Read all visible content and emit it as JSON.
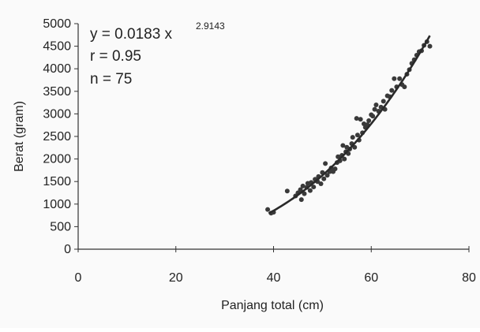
{
  "chart_data": {
    "type": "scatter",
    "xlabel": "Panjang total (cm)",
    "ylabel": "Berat (gram)",
    "xlim": [
      0,
      80
    ],
    "ylim": [
      0,
      5000
    ],
    "x_ticks": [
      "0",
      "20",
      "40",
      "60",
      "80"
    ],
    "y_ticks": [
      "0",
      "500",
      "1000",
      "1500",
      "2000",
      "2500",
      "3000",
      "3500",
      "4000",
      "4500",
      "5000"
    ],
    "grid": false,
    "annotations": {
      "equation": "y = 0.0183 x",
      "exponent": "2.9143",
      "r": "r = 0.95",
      "n": "n = 75"
    },
    "fit": {
      "a": 0.0183,
      "b": 2.9143,
      "x_range": [
        39,
        72
      ]
    },
    "points": [
      [
        38.8,
        880
      ],
      [
        39.5,
        800
      ],
      [
        40.0,
        820
      ],
      [
        42.8,
        1290
      ],
      [
        44.5,
        1180
      ],
      [
        45.0,
        1250
      ],
      [
        45.5,
        1320
      ],
      [
        45.7,
        1100
      ],
      [
        46.0,
        1400
      ],
      [
        46.3,
        1230
      ],
      [
        46.8,
        1370
      ],
      [
        47.0,
        1460
      ],
      [
        47.5,
        1300
      ],
      [
        47.7,
        1480
      ],
      [
        48.2,
        1380
      ],
      [
        48.5,
        1550
      ],
      [
        49.0,
        1500
      ],
      [
        49.2,
        1610
      ],
      [
        49.7,
        1450
      ],
      [
        50.0,
        1700
      ],
      [
        50.3,
        1560
      ],
      [
        50.6,
        1900
      ],
      [
        51.0,
        1640
      ],
      [
        51.5,
        1720
      ],
      [
        51.8,
        1800
      ],
      [
        52.2,
        1720
      ],
      [
        52.6,
        1780
      ],
      [
        53.0,
        1920
      ],
      [
        53.2,
        2050
      ],
      [
        53.6,
        1960
      ],
      [
        54.0,
        2080
      ],
      [
        54.2,
        2300
      ],
      [
        54.5,
        2000
      ],
      [
        54.8,
        2160
      ],
      [
        55.0,
        2260
      ],
      [
        55.3,
        2120
      ],
      [
        55.6,
        2220
      ],
      [
        56.0,
        2340
      ],
      [
        56.2,
        2480
      ],
      [
        56.6,
        2260
      ],
      [
        57.0,
        2900
      ],
      [
        57.2,
        2530
      ],
      [
        57.5,
        2420
      ],
      [
        57.8,
        2880
      ],
      [
        58.2,
        2580
      ],
      [
        58.5,
        2780
      ],
      [
        58.8,
        2700
      ],
      [
        59.2,
        2760
      ],
      [
        59.5,
        2850
      ],
      [
        60.0,
        2980
      ],
      [
        60.3,
        2950
      ],
      [
        60.7,
        3100
      ],
      [
        61.0,
        3200
      ],
      [
        61.5,
        3060
      ],
      [
        62.0,
        3150
      ],
      [
        62.5,
        3280
      ],
      [
        62.8,
        3100
      ],
      [
        63.3,
        3400
      ],
      [
        63.8,
        3380
      ],
      [
        64.2,
        3520
      ],
      [
        64.7,
        3780
      ],
      [
        65.2,
        3600
      ],
      [
        65.8,
        3780
      ],
      [
        66.3,
        3650
      ],
      [
        66.8,
        3600
      ],
      [
        67.3,
        3880
      ],
      [
        67.8,
        3980
      ],
      [
        68.3,
        4120
      ],
      [
        68.8,
        4200
      ],
      [
        69.3,
        4300
      ],
      [
        69.8,
        4380
      ],
      [
        70.3,
        4400
      ],
      [
        70.8,
        4520
      ],
      [
        71.4,
        4600
      ],
      [
        72.0,
        4500
      ]
    ]
  }
}
